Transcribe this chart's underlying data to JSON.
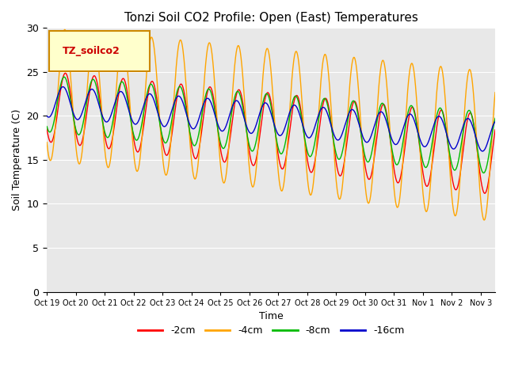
{
  "title": "Tonzi Soil CO2 Profile: Open (East) Temperatures",
  "xlabel": "Time",
  "ylabel": "Soil Temperature (C)",
  "legend_label": "TZ_soilco2",
  "series_labels": [
    "-2cm",
    "-4cm",
    "-8cm",
    "-16cm"
  ],
  "series_colors": [
    "#ff0000",
    "#ffa500",
    "#00bb00",
    "#0000cc"
  ],
  "ylim": [
    0,
    30
  ],
  "tick_labels": [
    "Oct 19",
    "Oct 20",
    "Oct 21",
    "Oct 22",
    "Oct 23",
    "Oct 24",
    "Oct 25",
    "Oct 26",
    "Oct 27",
    "Oct 28",
    "Oct 29",
    "Oct 30",
    "Oct 31",
    "Nov 1",
    "Nov 2",
    "Nov 3"
  ],
  "n_days": 15.5,
  "samples_per_day": 96
}
